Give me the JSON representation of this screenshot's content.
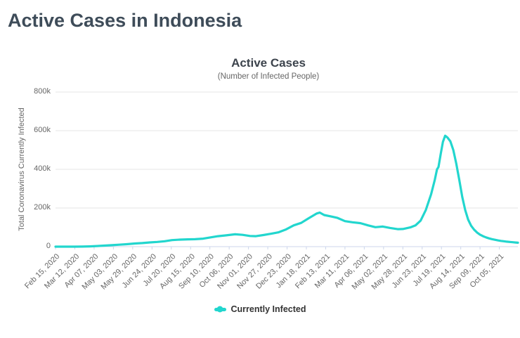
{
  "page": {
    "title": "Active Cases in Indonesia"
  },
  "chart": {
    "title": "Active Cases",
    "subtitle": "(Number of Infected People)",
    "y_axis_title": "Total Coronavirus Currently Infected",
    "legend_label": "Currently Infected",
    "colors": {
      "line": "#22d6ce",
      "axis_line": "#ccd6eb",
      "grid": "#e6e6e6",
      "tick_text": "#666666",
      "title_text": "#3c434c",
      "page_title_text": "#3e4c59",
      "legend_text": "#333333"
    }
  },
  "chart_data": {
    "type": "line",
    "title": "Active Cases",
    "subtitle": "(Number of Infected People)",
    "xlabel": "",
    "ylabel": "Total Coronavirus Currently Infected",
    "ylim": [
      0,
      800000
    ],
    "grid": true,
    "legend_position": "bottom",
    "yticks": [
      {
        "label": "0",
        "value": 0
      },
      {
        "label": "200k",
        "value": 200000
      },
      {
        "label": "400k",
        "value": 400000
      },
      {
        "label": "600k",
        "value": 600000
      },
      {
        "label": "800k",
        "value": 800000
      }
    ],
    "categories": [
      "Feb 15, 2020",
      "Mar 12, 2020",
      "Apr 07, 2020",
      "May 03, 2020",
      "May 29, 2020",
      "Jun 24, 2020",
      "Jul 20, 2020",
      "Aug 15, 2020",
      "Sep 10, 2020",
      "Oct 06, 2020",
      "Nov 01, 2020",
      "Nov 27, 2020",
      "Dec 23, 2020",
      "Jan 18, 2021",
      "Feb 13, 2021",
      "Mar 11, 2021",
      "Apr 06, 2021",
      "May 02, 2021",
      "May 28, 2021",
      "Jun 23, 2021",
      "Jul 19, 2021",
      "Aug 14, 2021",
      "Sep 09, 2021",
      "Oct 05, 2021"
    ],
    "series": [
      {
        "name": "Currently Infected",
        "color": "#22d6ce",
        "dates": [
          "2020-02-15",
          "2020-03-01",
          "2020-03-12",
          "2020-03-22",
          "2020-04-01",
          "2020-04-11",
          "2020-04-21",
          "2020-05-01",
          "2020-05-11",
          "2020-05-21",
          "2020-06-01",
          "2020-06-11",
          "2020-06-21",
          "2020-07-01",
          "2020-07-11",
          "2020-07-21",
          "2020-08-01",
          "2020-08-11",
          "2020-08-21",
          "2020-09-01",
          "2020-09-11",
          "2020-09-21",
          "2020-10-01",
          "2020-10-14",
          "2020-10-24",
          "2020-11-03",
          "2020-11-11",
          "2020-11-21",
          "2020-12-01",
          "2020-12-11",
          "2020-12-21",
          "2021-01-01",
          "2021-01-11",
          "2021-01-21",
          "2021-02-01",
          "2021-02-05",
          "2021-02-11",
          "2021-02-21",
          "2021-03-01",
          "2021-03-11",
          "2021-03-21",
          "2021-04-01",
          "2021-04-11",
          "2021-04-21",
          "2021-05-01",
          "2021-05-11",
          "2021-05-21",
          "2021-05-28",
          "2021-06-07",
          "2021-06-14",
          "2021-06-21",
          "2021-06-28",
          "2021-07-05",
          "2021-07-10",
          "2021-07-13",
          "2021-07-15",
          "2021-07-18",
          "2021-07-21",
          "2021-07-24",
          "2021-07-27",
          "2021-07-31",
          "2021-08-04",
          "2021-08-08",
          "2021-08-12",
          "2021-08-16",
          "2021-08-20",
          "2021-08-24",
          "2021-08-28",
          "2021-09-01",
          "2021-09-05",
          "2021-09-09",
          "2021-09-13",
          "2021-09-17",
          "2021-09-21",
          "2021-09-25",
          "2021-09-29",
          "2021-10-03",
          "2021-10-07",
          "2021-10-11",
          "2021-10-15",
          "2021-10-19",
          "2021-10-23",
          "2021-10-27",
          "2021-10-30"
        ],
        "values": [
          0,
          10,
          60,
          500,
          1500,
          3200,
          5500,
          7700,
          10100,
          12900,
          16300,
          18700,
          21800,
          24300,
          28000,
          33700,
          36500,
          37700,
          38400,
          41300,
          47900,
          54300,
          58300,
          64000,
          61000,
          55300,
          54300,
          59900,
          66600,
          73800,
          87900,
          110100,
          122900,
          146800,
          171500,
          176300,
          163500,
          155800,
          148700,
          132000,
          126300,
          121300,
          110300,
          100700,
          104000,
          96800,
          90700,
          91100,
          99600,
          109900,
          135000,
          190000,
          270000,
          345000,
          400000,
          412000,
          480000,
          542000,
          574100,
          565000,
          545000,
          500000,
          430000,
          345000,
          258000,
          190000,
          140000,
          108000,
          88000,
          73000,
          62000,
          54000,
          48000,
          43000,
          39000,
          35500,
          32500,
          30000,
          28000,
          26000,
          24500,
          23000,
          21500,
          20500
        ]
      }
    ]
  }
}
